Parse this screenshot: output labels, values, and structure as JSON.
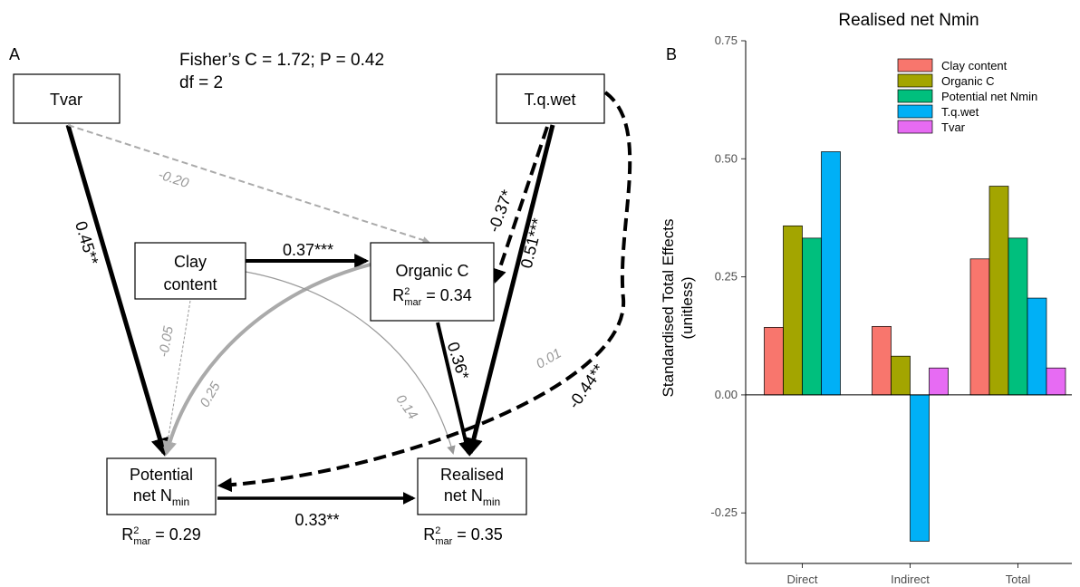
{
  "panel_a": {
    "label": "A",
    "fit_lines": [
      "Fisher’s C = 1.72; P = 0.42",
      "df = 2"
    ],
    "nodes": [
      {
        "lines": [
          "Tvar"
        ]
      },
      {
        "lines": [
          "T.q.wet"
        ]
      },
      {
        "lines": [
          "Clay",
          "content"
        ]
      },
      {
        "lines": [
          "Organic C"
        ],
        "r2": {
          "symbol": "R",
          "sup": "2",
          "sub": "mar",
          "text": "= 0.34"
        }
      },
      {
        "lines": [
          "Potential",
          "net N"
        ],
        "sub": "min",
        "r2": {
          "symbol": "R",
          "sup": "2",
          "sub": "mar",
          "text": "= 0.29"
        }
      },
      {
        "lines": [
          "Realised",
          "net N"
        ],
        "sub": "min",
        "r2": {
          "symbol": "R",
          "sup": "2",
          "sub": "mar",
          "text": "= 0.35"
        }
      }
    ],
    "edge_labels": [
      "0.45**",
      "-0.20",
      "0.37***",
      "-0.37*",
      "0.51***",
      "-0.05",
      "0.25",
      "0.36*",
      "0.14",
      "0.01",
      "-0.44**",
      "0.33**"
    ]
  },
  "chart_data": {
    "type": "bar",
    "panel_label": "B",
    "title": "Realised net Nmin",
    "y_label": [
      "Standardised Total Effects",
      "(unitless)"
    ],
    "categories": [
      "Direct",
      "Indirect",
      "Total"
    ],
    "series": [
      {
        "name": "Clay content",
        "color": "#F8766D",
        "values": [
          0.143,
          0.145,
          0.288
        ]
      },
      {
        "name": "Organic C",
        "color": "#A3A500",
        "values": [
          0.358,
          0.082,
          0.442
        ]
      },
      {
        "name": "Potential net Nmin",
        "color": "#00BF7D",
        "values": [
          0.332,
          null,
          0.332
        ]
      },
      {
        "name": "T.q.wet",
        "color": "#00B0F6",
        "values": [
          0.515,
          -0.31,
          0.205
        ]
      },
      {
        "name": "Tvar",
        "color": "#E76BF3",
        "values": [
          null,
          0.057,
          0.057
        ]
      }
    ],
    "ylim": [
      -0.357,
      0.75
    ],
    "yticks": [
      {
        "value": -0.25,
        "label": "-0.25"
      },
      {
        "value": 0,
        "label": "0.00"
      },
      {
        "value": 0.25,
        "label": "0.25"
      },
      {
        "value": 0.5,
        "label": "0.50"
      },
      {
        "value": 0.75,
        "label": "0.75"
      }
    ],
    "legend": "top-right",
    "grid": false
  }
}
